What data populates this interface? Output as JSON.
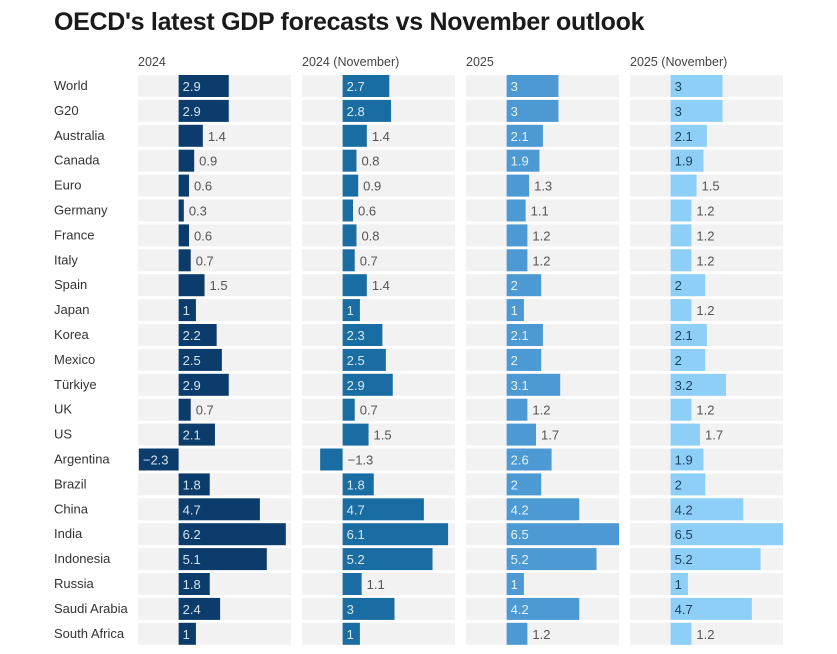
{
  "chart_data": {
    "type": "bar",
    "orientation": "horizontal",
    "title": "OECD's latest GDP forecasts vs November outlook",
    "categories": [
      "World",
      "G20",
      "Australia",
      "Canada",
      "Euro",
      "Germany",
      "France",
      "Italy",
      "Spain",
      "Japan",
      "Korea",
      "Mexico",
      "Türkiye",
      "UK",
      "US",
      "Argentina",
      "Brazil",
      "China",
      "India",
      "Indonesia",
      "Russia",
      "Saudi Arabia",
      "South Africa"
    ],
    "xlim": [
      -2.35,
      6.5
    ],
    "grid": false,
    "legend": "none",
    "series": [
      {
        "name": "2024",
        "color": "#0c3c6c",
        "label_color": "#d5e3f0",
        "values": [
          2.9,
          2.9,
          1.4,
          0.9,
          0.6,
          0.3,
          0.6,
          0.7,
          1.5,
          1,
          2.2,
          2.5,
          2.9,
          0.7,
          2.1,
          -2.3,
          1.8,
          4.7,
          6.2,
          5.1,
          1.8,
          2.4,
          1
        ]
      },
      {
        "name": "2024 (November)",
        "color": "#1a6da3",
        "label_color": "#d8e8f4",
        "values": [
          2.7,
          2.8,
          1.4,
          0.8,
          0.9,
          0.6,
          0.8,
          0.7,
          1.4,
          1,
          2.3,
          2.5,
          2.9,
          0.7,
          1.5,
          -1.3,
          1.8,
          4.7,
          6.1,
          5.2,
          1.1,
          3,
          1
        ]
      },
      {
        "name": "2025",
        "color": "#4d99d3",
        "label_color": "#e6f1fa",
        "values": [
          3,
          3,
          2.1,
          1.9,
          1.3,
          1.1,
          1.2,
          1.2,
          2,
          1,
          2.1,
          2,
          3.1,
          1.2,
          1.7,
          2.6,
          2,
          4.2,
          6.5,
          5.2,
          1,
          4.2,
          1.2
        ]
      },
      {
        "name": "2025 (November)",
        "color": "#8ecff8",
        "label_color": "#1d3f5e",
        "values": [
          3,
          3,
          2.1,
          1.9,
          1.5,
          1.2,
          1.2,
          1.2,
          2,
          1.2,
          2.1,
          2,
          3.2,
          1.2,
          1.7,
          1.9,
          2,
          4.2,
          6.5,
          5.2,
          1,
          4.7,
          1.2
        ]
      }
    ]
  }
}
